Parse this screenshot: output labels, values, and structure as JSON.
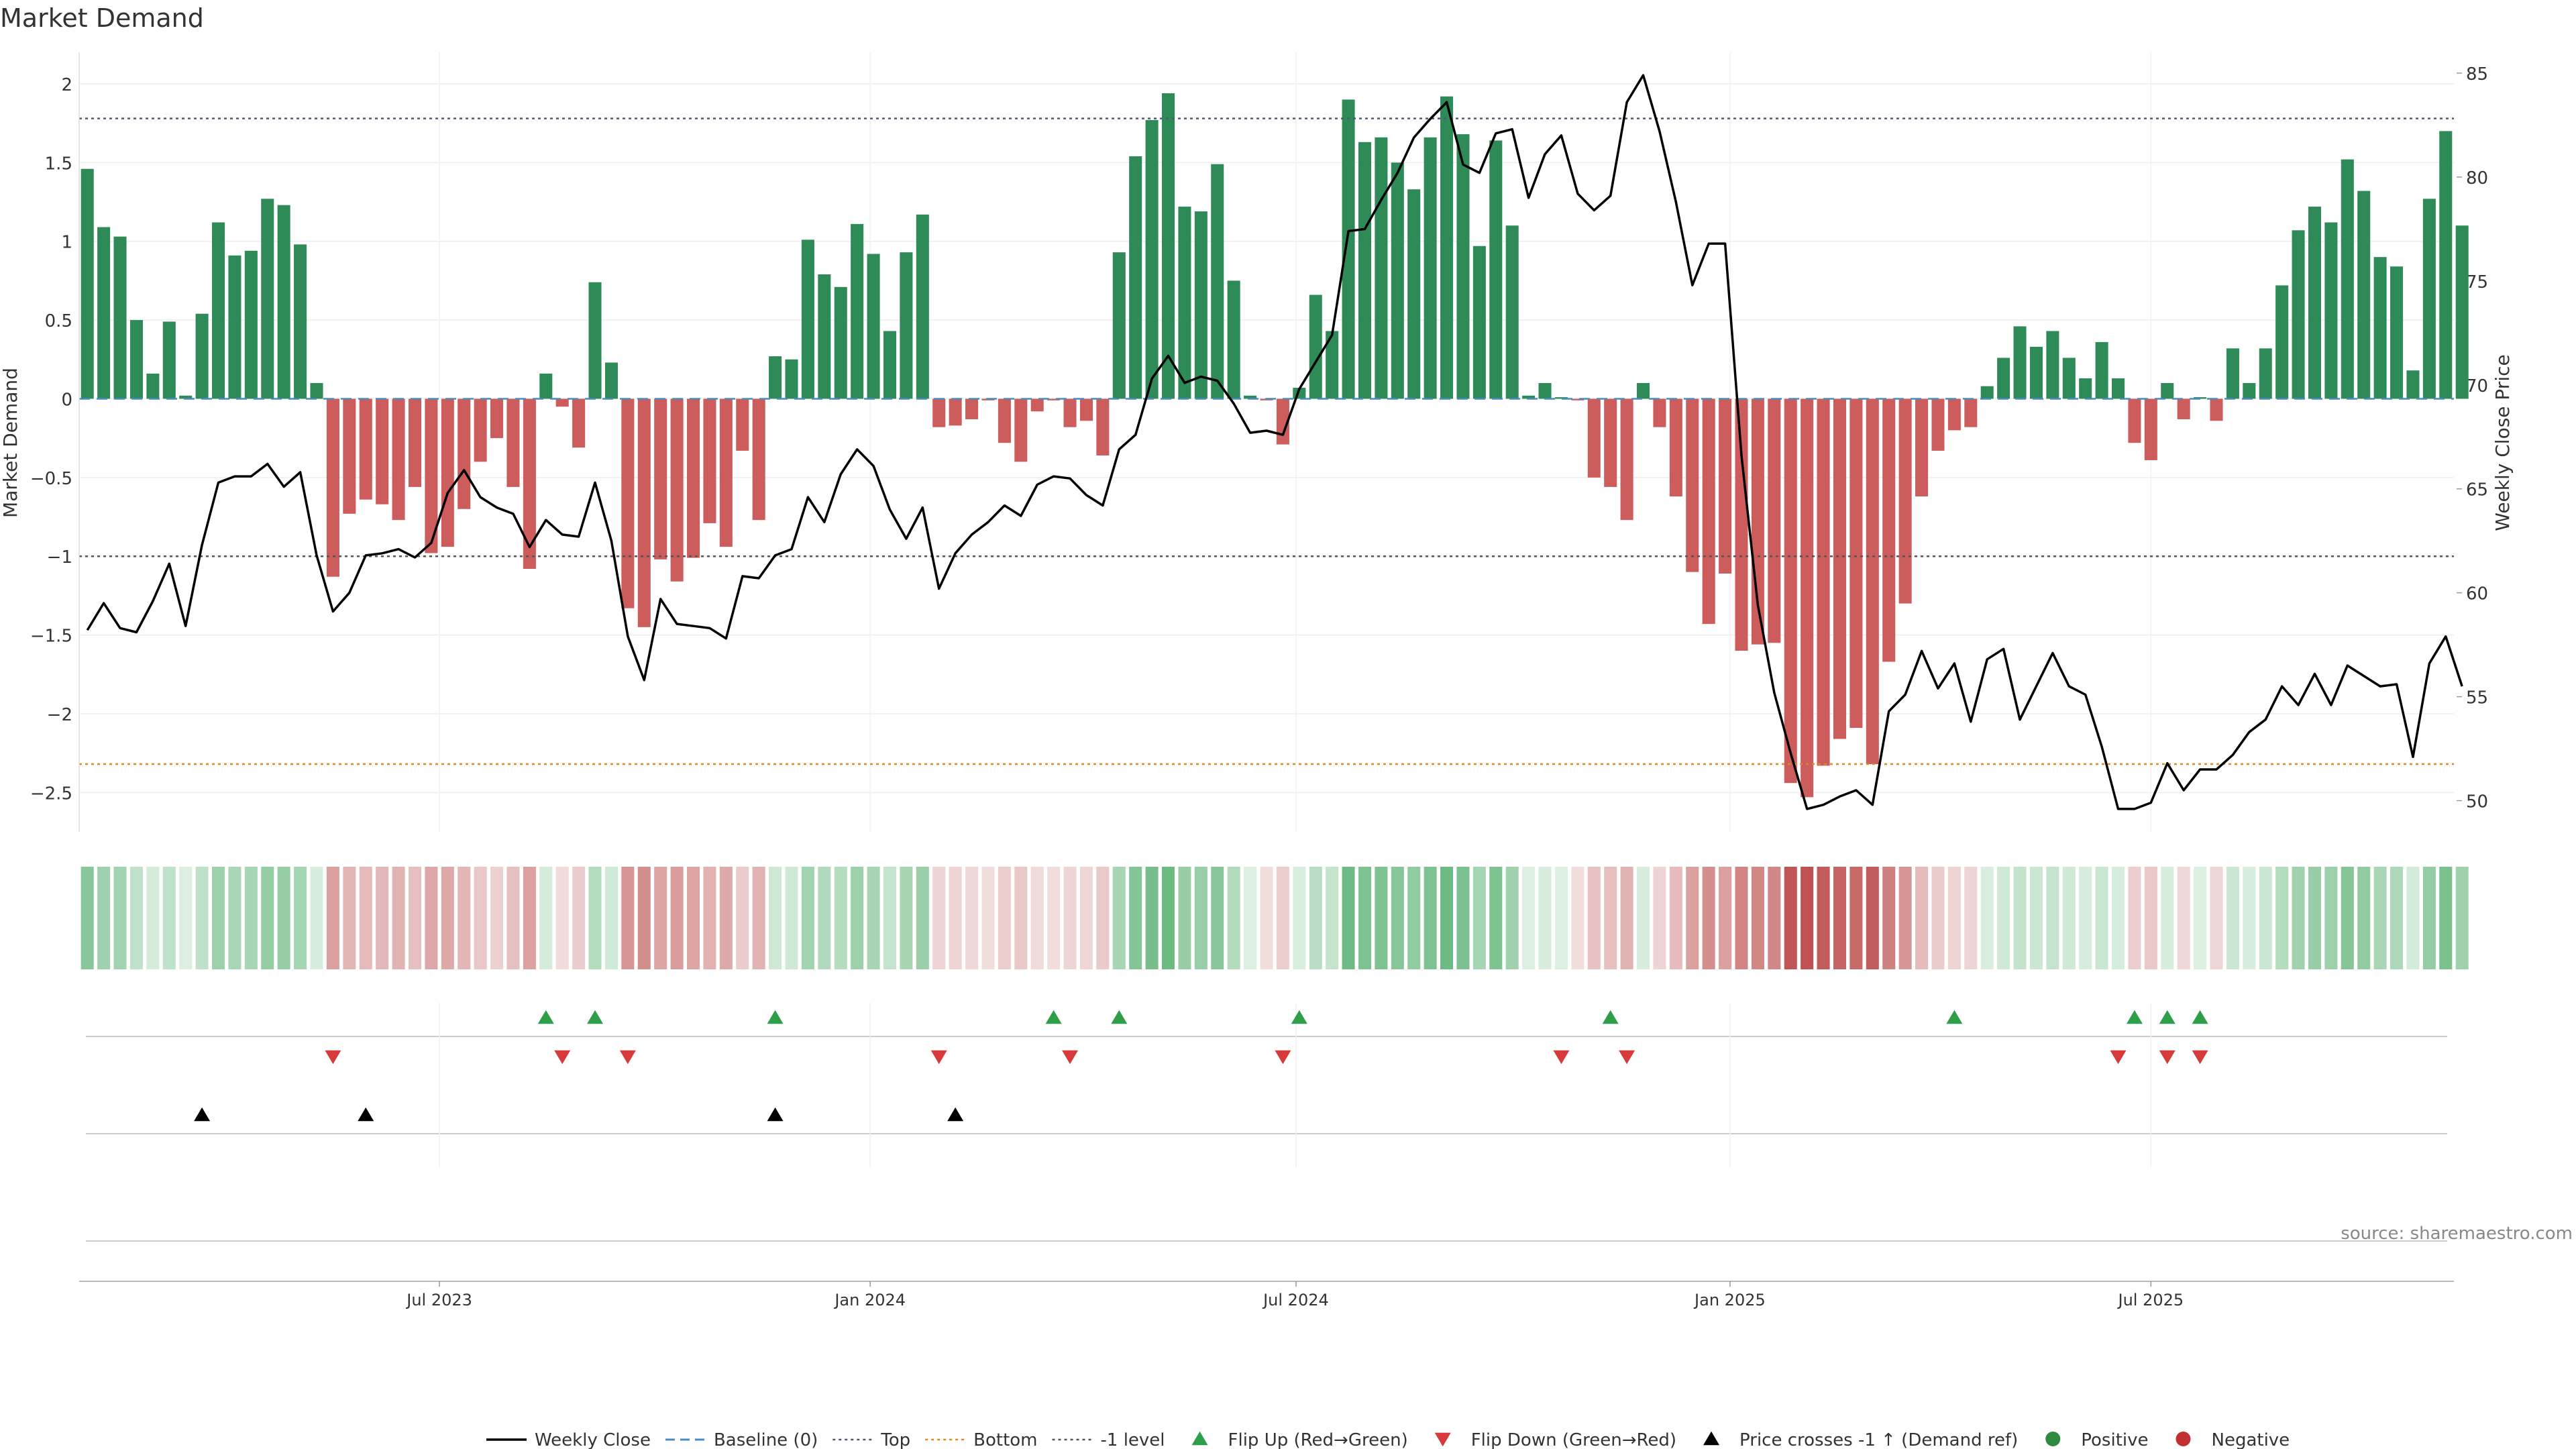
{
  "chart_data": {
    "type": "bar",
    "title": "Market Demand",
    "ylabel": "Market Demand",
    "y2label": "Weekly Close Price",
    "source": "source: sharemaestro.com",
    "ylim": [
      -2.75,
      2.2
    ],
    "y2lim": [
      48.5,
      86
    ],
    "yticks": [
      2,
      1.5,
      1,
      0.5,
      0,
      -0.5,
      -1,
      -1.5,
      -2,
      -2.5
    ],
    "ytick_labels": [
      "2",
      "1.5",
      "1",
      "0.5",
      "0",
      "−0.5",
      "−1",
      "−1.5",
      "−2",
      "−2.5"
    ],
    "y2ticks": [
      85,
      80,
      75,
      70,
      65,
      60,
      55,
      50
    ],
    "y2tick_labels": [
      "85",
      "80",
      "75",
      "70",
      "65",
      "60",
      "55",
      "50"
    ],
    "x_start_index": 0,
    "x_end_index": 144,
    "xticks": [
      {
        "label": "Jul 2023",
        "index": 21.5
      },
      {
        "label": "Jan 2024",
        "index": 47.8
      },
      {
        "label": "Jul 2024",
        "index": 73.8
      },
      {
        "label": "Jan 2025",
        "index": 100.3
      },
      {
        "label": "Jul 2025",
        "index": 126
      }
    ],
    "reference_lines": {
      "top": 1.78,
      "bottom": -2.32,
      "minus_one": -1,
      "baseline": 0
    },
    "demand": [
      1.46,
      1.09,
      1.03,
      0.5,
      0.16,
      0.49,
      0.02,
      0.54,
      1.12,
      0.91,
      0.94,
      1.27,
      1.23,
      0.98,
      0.1,
      -1.13,
      -0.73,
      -0.64,
      -0.67,
      -0.77,
      -0.56,
      -0.98,
      -0.94,
      -0.7,
      -0.4,
      -0.25,
      -0.56,
      -1.08,
      0.16,
      -0.05,
      -0.31,
      0.74,
      0.23,
      -1.33,
      -1.45,
      -1.02,
      -1.16,
      -1.01,
      -0.79,
      -0.94,
      -0.33,
      -0.77,
      0.27,
      0.25,
      1.01,
      0.79,
      0.71,
      1.11,
      0.92,
      0.43,
      0.93,
      1.17,
      -0.18,
      -0.17,
      -0.13,
      -0.01,
      -0.28,
      -0.4,
      -0.08,
      -0.01,
      -0.18,
      -0.14,
      -0.36,
      0.93,
      1.54,
      1.77,
      1.94,
      1.22,
      1.19,
      1.49,
      0.75,
      0.02,
      -0.01,
      -0.29,
      0.07,
      0.66,
      0.43,
      1.9,
      1.63,
      1.66,
      1.5,
      1.33,
      1.66,
      1.92,
      1.68,
      0.97,
      1.64,
      1.1,
      0.02,
      0.1,
      0.01,
      -0.01,
      -0.5,
      -0.56,
      -0.77,
      0.1,
      -0.18,
      -0.62,
      -1.1,
      -1.43,
      -1.11,
      -1.6,
      -1.56,
      -1.55,
      -2.44,
      -2.53,
      -2.33,
      -2.16,
      -2.09,
      -2.32,
      -1.67,
      -1.3,
      -0.62,
      -0.33,
      -0.2,
      -0.18,
      0.08,
      0.26,
      0.46,
      0.33,
      0.43,
      0.26,
      0.13,
      0.36,
      0.13,
      -0.28,
      -0.39,
      0.1,
      -0.13,
      0.01,
      -0.14,
      0.32,
      0.1,
      0.32,
      0.72,
      1.07,
      1.22,
      1.12,
      1.52,
      1.32,
      0.9,
      0.84,
      0.18,
      1.27,
      1.7,
      1.1
    ],
    "weekly_close": [
      58.2,
      59.5,
      58.3,
      58.1,
      59.6,
      61.4,
      58.4,
      62.3,
      65.3,
      65.6,
      65.6,
      66.2,
      65.1,
      65.8,
      61.8,
      59.1,
      60.0,
      61.8,
      61.9,
      62.1,
      61.7,
      62.4,
      64.8,
      65.9,
      64.6,
      64.1,
      63.8,
      62.2,
      63.5,
      62.8,
      62.7,
      65.3,
      62.5,
      57.9,
      55.8,
      59.7,
      58.5,
      58.4,
      58.3,
      57.8,
      60.8,
      60.7,
      61.8,
      62.1,
      64.6,
      63.4,
      65.7,
      66.9,
      66.1,
      64.0,
      62.6,
      64.1,
      60.2,
      61.9,
      62.8,
      63.4,
      64.2,
      63.7,
      65.2,
      65.6,
      65.5,
      64.7,
      64.2,
      66.9,
      67.6,
      70.3,
      71.4,
      70.1,
      70.4,
      70.2,
      69.1,
      67.7,
      67.8,
      67.6,
      69.8,
      71.1,
      72.4,
      77.4,
      77.5,
      78.9,
      80.2,
      81.9,
      82.8,
      83.6,
      80.6,
      80.2,
      82.1,
      82.3,
      79.0,
      81.1,
      82.0,
      79.2,
      78.4,
      79.1,
      83.6,
      84.9,
      82.2,
      78.8,
      74.8,
      76.8,
      76.8,
      66.6,
      59.4,
      55.2,
      52.3,
      49.6,
      49.8,
      50.2,
      50.5,
      49.8,
      54.3,
      55.1,
      57.2,
      55.4,
      56.6,
      53.8,
      56.8,
      57.3,
      53.9,
      55.5,
      57.1,
      55.5,
      55.1,
      52.6,
      49.6,
      49.6,
      49.9,
      51.8,
      50.5,
      51.5,
      51.5,
      52.2,
      53.3,
      53.9,
      55.5,
      54.6,
      56.1,
      54.6,
      56.5,
      56.0,
      55.5,
      55.6,
      52.1,
      56.6,
      57.9,
      55.5
    ],
    "flip_up": [
      28,
      31,
      42,
      59,
      63,
      74,
      93,
      114,
      125,
      127,
      129
    ],
    "flip_down": [
      15,
      29,
      33,
      52,
      60,
      73,
      90,
      94,
      124,
      127,
      129
    ],
    "price_cross_up": [
      7,
      17,
      42,
      53
    ],
    "legend": [
      {
        "label": "Weekly Close",
        "kind": "line",
        "color": "#000000"
      },
      {
        "label": "Baseline (0)",
        "kind": "dash",
        "color": "#4a8bbf"
      },
      {
        "label": "Top",
        "kind": "dot",
        "color": "#555577"
      },
      {
        "label": "Bottom",
        "kind": "dot",
        "color": "#e08a1e"
      },
      {
        "label": "-1 level",
        "kind": "dot",
        "color": "#555555"
      },
      {
        "label": "Flip Up (Red→Green)",
        "kind": "tri-up",
        "color": "#2e9e48"
      },
      {
        "label": "Flip Down (Green→Red)",
        "kind": "tri-down",
        "color": "#d63a3a"
      },
      {
        "label": "Price crosses -1 ↑ (Demand ref)",
        "kind": "tri-up",
        "color": "#000000"
      },
      {
        "label": "Positive",
        "kind": "circle",
        "color": "#2e8a3e"
      },
      {
        "label": "Negative",
        "kind": "circle",
        "color": "#c03030"
      }
    ],
    "colors": {
      "positive": "#2e8a57",
      "negative": "#cd5c5c",
      "price": "#000000",
      "top": "#555577",
      "bottom": "#e08a1e",
      "minus_one": "#555555",
      "baseline": "#4a8bbf",
      "flip_up": "#2e9e48",
      "flip_down": "#d63a3a",
      "cross": "#000000"
    }
  }
}
